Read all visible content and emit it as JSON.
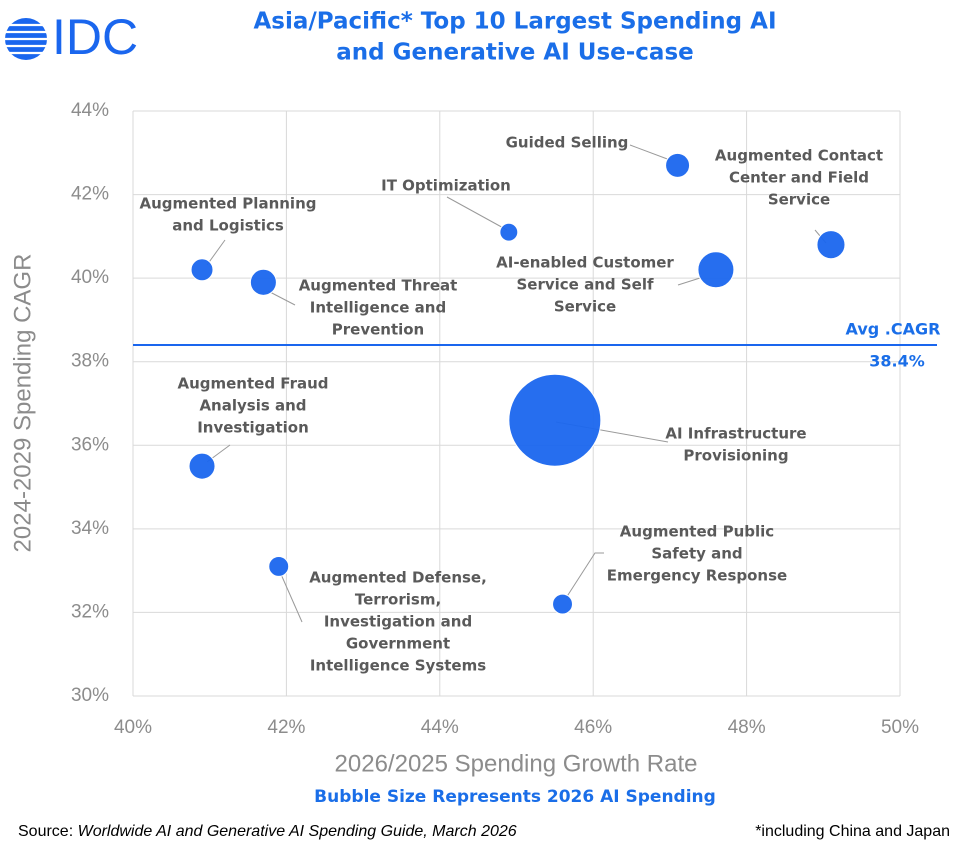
{
  "logo": "IDC",
  "chart_data": {
    "type": "scatter",
    "title": [
      "Asia/Pacific* Top 10 Largest Spending AI",
      "and Generative AI Use-case"
    ],
    "x_label": "2026/2025 Spending Growth Rate",
    "y_label": "2024-2029 Spending CAGR",
    "size_note": "Bubble Size Represents 2026 AI Spending",
    "color": "#1a66ee",
    "labels": [
      [
        "Guided Selling"
      ],
      [
        "Augmented Contact",
        "Center and Field",
        "Service"
      ],
      [
        "IT Optimization"
      ],
      [
        "Augmented Planning",
        "and Logistics"
      ],
      [
        "Augmented Threat",
        "Intelligence and",
        "Prevention"
      ],
      [
        "AI-enabled Customer",
        "Service and Self",
        "Service"
      ],
      [
        "Augmented Fraud",
        "Analysis and",
        "Investigation"
      ],
      [
        "AI Infrastructure",
        "Provisioning"
      ],
      [
        "Augmented Defense,",
        "Terrorism,",
        "Investigation and",
        "Government",
        "Intelligence Systems"
      ],
      [
        "Augmented Public",
        "Safety and",
        "Emergency Response"
      ]
    ],
    "x": [
      47.1,
      49.1,
      44.9,
      40.9,
      41.7,
      47.6,
      40.9,
      45.5,
      41.9,
      45.6
    ],
    "values": [
      42.7,
      40.8,
      41.1,
      40.2,
      39.9,
      40.2,
      35.5,
      36.6,
      33.1,
      32.2
    ],
    "sizes": [
      6.8,
      9.3,
      3.8,
      5.7,
      8,
      15.3,
      8,
      100,
      4.7,
      4.7
    ],
    "xlim": [
      40,
      50
    ],
    "xticks": [
      {
        "value": 40,
        "label": "40%"
      },
      {
        "value": 42,
        "label": "42%"
      },
      {
        "value": 44,
        "label": "44%"
      },
      {
        "value": 46,
        "label": "46%"
      },
      {
        "value": 48,
        "label": "48%"
      },
      {
        "value": 50,
        "label": "50%"
      }
    ],
    "ylim": [
      30,
      44
    ],
    "yticks": [
      {
        "value": 30,
        "label": "30%"
      },
      {
        "value": 32,
        "label": "32%"
      },
      {
        "value": 34,
        "label": "34%"
      },
      {
        "value": 36,
        "label": "36%"
      },
      {
        "value": 38,
        "label": "38%"
      },
      {
        "value": 40,
        "label": "40%"
      },
      {
        "value": 42,
        "label": "42%"
      },
      {
        "value": 44,
        "label": "44%"
      }
    ],
    "grid": true,
    "reference_line": {
      "name": "Avg .CAGR",
      "value": 38.4,
      "label": "38.4%"
    }
  },
  "footer": {
    "source_prefix": "Source:",
    "source": "Worldwide AI and Generative AI Spending Guide, March 2026",
    "note": "*including China and Japan"
  }
}
